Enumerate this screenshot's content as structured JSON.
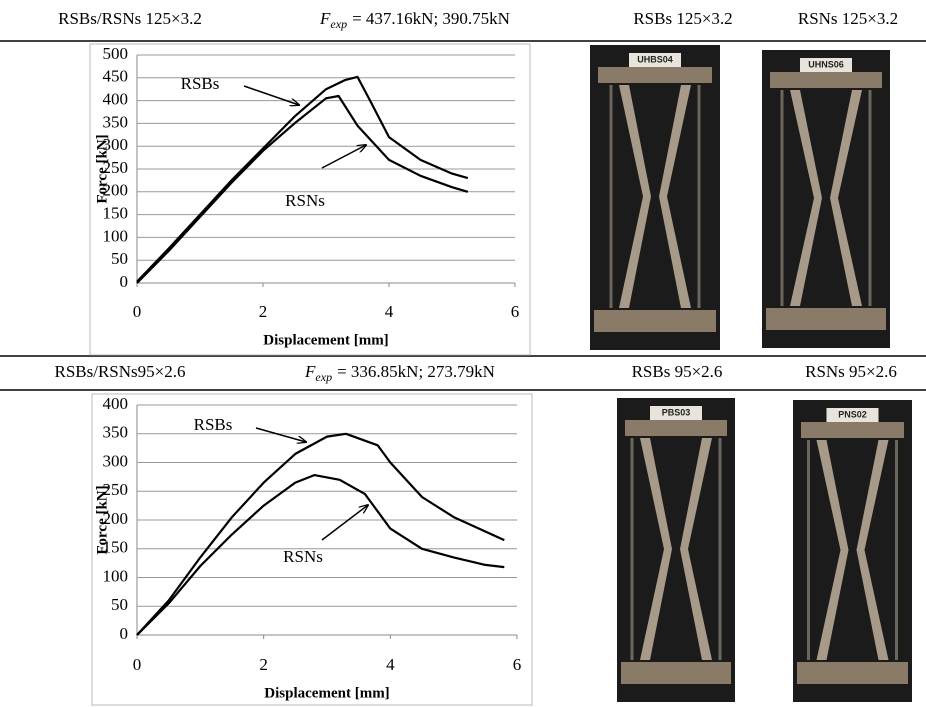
{
  "table": {
    "rows": [
      {
        "cells": [
          "RSBs/RSNs 125×3.2",
          {
            "symbol": "F",
            "subscript": "exp",
            "text": "= 437.16kN; 390.75kN"
          },
          "RSBs 125×3.2",
          "RSNs 125×3.2"
        ],
        "photos": [
          "UHBS04",
          "UHNS06"
        ]
      },
      {
        "cells": [
          "RSBs/RSNs95×2.6",
          {
            "symbol": "F",
            "subscript": "exp",
            "text": "= 336.85kN; 273.79kN"
          },
          "RSBs 95×2.6",
          "RSNs 95×2.6"
        ],
        "photos": [
          "PBS03",
          "PNS02"
        ]
      }
    ]
  },
  "chart_data": [
    {
      "type": "line",
      "xlabel": "Displacement [mm]",
      "ylabel": "Force [kN]",
      "xlim": [
        0,
        6
      ],
      "xticks": [
        0,
        2,
        4,
        6
      ],
      "ylim": [
        0,
        500
      ],
      "yticks": [
        0,
        50,
        100,
        150,
        200,
        250,
        300,
        350,
        400,
        450,
        500
      ],
      "grid": true,
      "series": [
        {
          "color": "#000000",
          "x": [
            0,
            0.5,
            1,
            1.5,
            2,
            2.5,
            3,
            3.3,
            3.5,
            3.7,
            4,
            4.5,
            5,
            5.25
          ],
          "values": [
            3,
            75,
            150,
            225,
            295,
            365,
            425,
            445,
            452,
            400,
            320,
            270,
            240,
            230
          ]
        },
        {
          "color": "#000000",
          "x": [
            0,
            0.5,
            1,
            1.5,
            2,
            2.5,
            3,
            3.2,
            3.5,
            4,
            4.5,
            5,
            5.25
          ],
          "values": [
            0,
            70,
            145,
            220,
            290,
            350,
            405,
            410,
            345,
            270,
            235,
            210,
            200
          ]
        }
      ],
      "annotations": [
        {
          "text": "RSBs"
        },
        {
          "text": "RSNs"
        }
      ]
    },
    {
      "type": "line",
      "xlabel": "Displacement [mm]",
      "ylabel": "Force [kN]",
      "xlim": [
        0,
        6
      ],
      "xticks": [
        0,
        2,
        4,
        6
      ],
      "ylim": [
        0,
        400
      ],
      "yticks": [
        0,
        50,
        100,
        150,
        200,
        250,
        300,
        350,
        400
      ],
      "grid": true,
      "series": [
        {
          "color": "#000000",
          "x": [
            0,
            0.5,
            1,
            1.5,
            2,
            2.5,
            3,
            3.3,
            3.8,
            4,
            4.5,
            5,
            5.5,
            5.8
          ],
          "values": [
            0,
            60,
            135,
            205,
            265,
            315,
            345,
            350,
            330,
            300,
            240,
            205,
            180,
            165
          ]
        },
        {
          "color": "#000000",
          "x": [
            0,
            0.5,
            1,
            1.5,
            2,
            2.5,
            2.8,
            3.2,
            3.6,
            4,
            4.5,
            5,
            5.5,
            5.8
          ],
          "values": [
            0,
            55,
            120,
            175,
            225,
            265,
            278,
            270,
            245,
            185,
            150,
            135,
            122,
            118
          ]
        }
      ],
      "annotations": [
        {
          "text": "RSBs"
        },
        {
          "text": "RSNs"
        }
      ]
    }
  ]
}
